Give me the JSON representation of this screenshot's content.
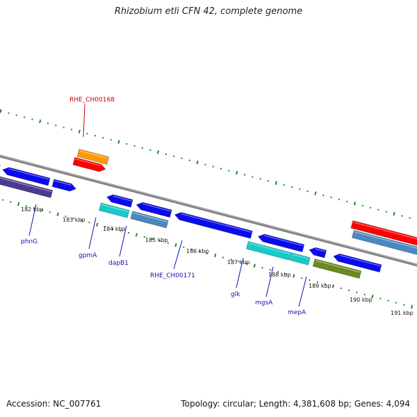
{
  "title": "Rhizobium etli CFN 42, complete genome",
  "footer": {
    "accession": "Accession: NC_007761",
    "topology": "Topology: circular; Length: 4,381,608 bp; Genes: 4,094"
  },
  "colors": {
    "backbone": "#808080",
    "tick": "#1a8a1a",
    "label_blue": "#1010aa",
    "label_red": "#cc0000",
    "gene_blue": "#0a0aee",
    "gene_cyan": "#12cccc",
    "gene_steel": "#4a88c0",
    "gene_red": "#ff0000",
    "gene_orange": "#ff9900",
    "gene_navy": "#4a3a90",
    "gene_olive": "#6a8a20"
  },
  "scale_labels": [
    "182 kbp",
    "183 kbp",
    "184 kbp",
    "185 kbp",
    "186 kbp",
    "187 kbp",
    "188 kbp",
    "189 kbp",
    "190 kbp",
    "191 kbp"
  ],
  "gene_labels": [
    {
      "name": "phnG",
      "color": "label_blue"
    },
    {
      "name": "gpmA",
      "color": "label_blue"
    },
    {
      "name": "dapB1",
      "color": "label_blue"
    },
    {
      "name": "RHE_CH00171",
      "color": "label_blue"
    },
    {
      "name": "glk",
      "color": "label_blue"
    },
    {
      "name": "mgsA",
      "color": "label_blue"
    },
    {
      "name": "mepA",
      "color": "label_blue"
    },
    {
      "name": "RHE_CH00168",
      "color": "label_red"
    }
  ],
  "features": [
    {
      "track": "outer-2",
      "color": "gene_orange",
      "dir": 0
    },
    {
      "track": "outer-1",
      "color": "gene_red",
      "dir": 1
    },
    {
      "track": "inner-1",
      "color": "gene_blue",
      "dir": -1
    },
    {
      "track": "inner-1",
      "color": "gene_blue",
      "dir": -1
    },
    {
      "track": "inner-1",
      "color": "gene_blue",
      "dir": 1
    },
    {
      "track": "inner-1",
      "color": "gene_blue",
      "dir": -1
    },
    {
      "track": "inner-1",
      "color": "gene_blue",
      "dir": -1
    },
    {
      "track": "inner-1",
      "color": "gene_blue",
      "dir": -1
    },
    {
      "track": "inner-1",
      "color": "gene_blue",
      "dir": -1
    },
    {
      "track": "inner-1",
      "color": "gene_blue",
      "dir": -1
    },
    {
      "track": "inner-1",
      "color": "gene_blue",
      "dir": -1
    },
    {
      "track": "inner-2",
      "color": "gene_navy",
      "dir": 0
    },
    {
      "track": "inner-2",
      "color": "gene_cyan",
      "dir": 0
    },
    {
      "track": "inner-2",
      "color": "gene_steel",
      "dir": 0
    },
    {
      "track": "inner-2",
      "color": "gene_cyan",
      "dir": 0
    },
    {
      "track": "inner-2",
      "color": "gene_cyan",
      "dir": 0
    },
    {
      "track": "inner-2",
      "color": "gene_olive",
      "dir": 0
    },
    {
      "track": "outer-1",
      "color": "gene_steel",
      "dir": 0
    },
    {
      "track": "outer-2",
      "color": "gene_red",
      "dir": 0
    }
  ]
}
